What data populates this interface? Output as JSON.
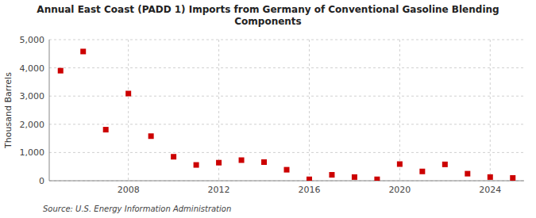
{
  "chart_data": {
    "type": "scatter",
    "title": "Annual East Coast (PADD 1) Imports from Germany of Conventional Gasoline Blending\nComponents",
    "ylabel": "Thousand Barrels",
    "annotations": [
      "Source: U.S. Energy Information Administration"
    ],
    "color": "#cc0000",
    "marker": "square",
    "grid": true,
    "xlim": [
      2004.5,
      2025.5
    ],
    "ylim": [
      0,
      5000
    ],
    "xticks": [
      2008,
      2012,
      2016,
      2020,
      2024
    ],
    "yticks": [
      0,
      {
        "value": 1000,
        "label": "1,000"
      },
      {
        "value": 2000,
        "label": "2,000"
      },
      {
        "value": 3000,
        "label": "3,000"
      },
      {
        "value": 4000,
        "label": "4,000"
      },
      {
        "value": 5000,
        "label": "5,000"
      }
    ],
    "x": [
      2005,
      2006,
      2007,
      2008,
      2009,
      2010,
      2011,
      2012,
      2013,
      2014,
      2015,
      2016,
      2017,
      2018,
      2019,
      2020,
      2021,
      2022,
      2023,
      2024,
      2025
    ],
    "values": [
      3900,
      4580,
      1810,
      3090,
      1580,
      850,
      560,
      640,
      730,
      660,
      390,
      50,
      210,
      130,
      50,
      590,
      330,
      580,
      250,
      130,
      100
    ]
  }
}
